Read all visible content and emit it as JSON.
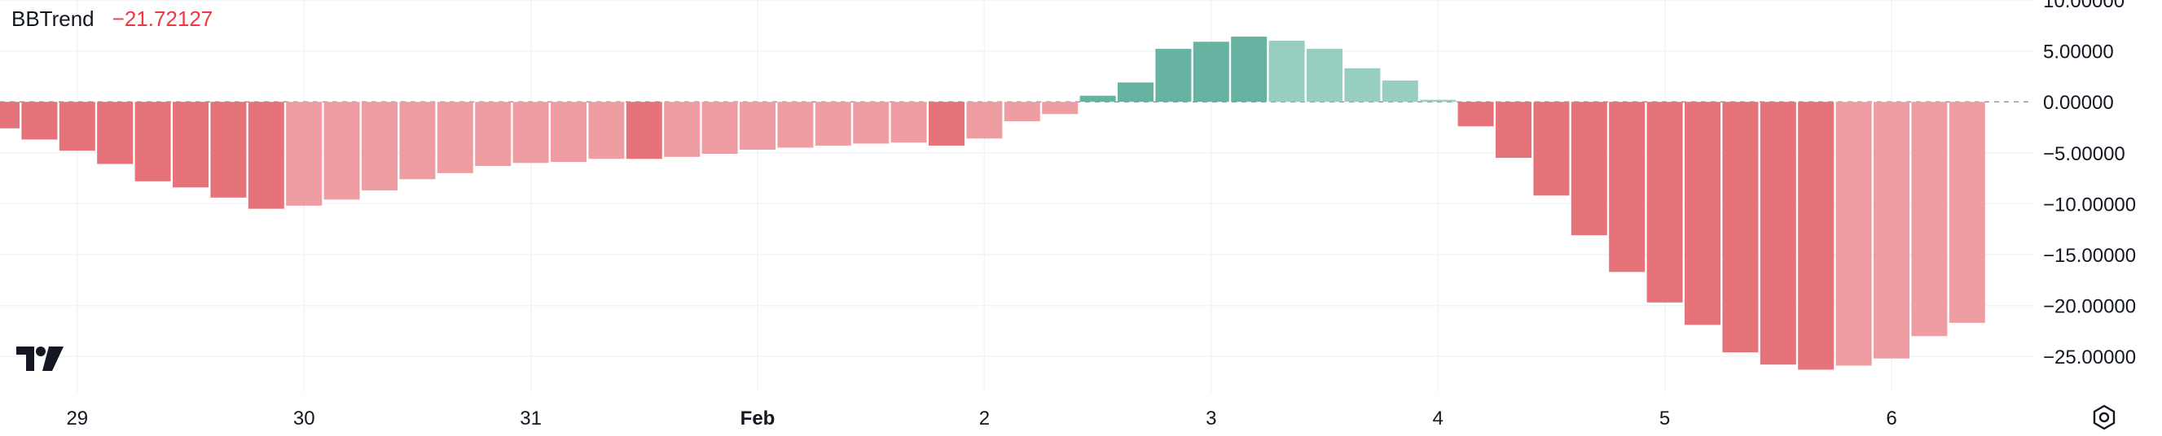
{
  "legend": {
    "name": "BBTrend",
    "value": "−21.72127"
  },
  "colors": {
    "neg_strong": "#e57379",
    "neg_weak": "#ee9ea3",
    "pos_strong": "#66b3a2",
    "pos_weak": "#98cdc2",
    "grid": "#f0f3fa",
    "zero_line": "#9598a1"
  },
  "icons": {
    "logo": "tradingview-logo-icon",
    "settings": "settings-gear-icon"
  },
  "chart_data": {
    "type": "bar",
    "ylim": [
      -28.5,
      10.0
    ],
    "y_ticks": [
      10,
      5,
      0,
      -5,
      -10,
      -15,
      -20,
      -25
    ],
    "y_tick_labels": [
      "10.00000",
      "5.00000",
      "0.00000",
      "−5.00000",
      "−10.00000",
      "−15.00000",
      "−20.00000",
      "−25.00000"
    ],
    "x_ticks": [
      {
        "label": "29",
        "index": 2,
        "bold": false
      },
      {
        "label": "30",
        "index": 8,
        "bold": false
      },
      {
        "label": "31",
        "index": 14,
        "bold": false
      },
      {
        "label": "Feb",
        "index": 20,
        "bold": true
      },
      {
        "label": "2",
        "index": 26,
        "bold": false
      },
      {
        "label": "3",
        "index": 32,
        "bold": false
      },
      {
        "label": "4",
        "index": 38,
        "bold": false
      },
      {
        "label": "5",
        "index": 44,
        "bold": false
      },
      {
        "label": "6",
        "index": 50,
        "bold": false
      }
    ],
    "values": [
      -2.6,
      -3.7,
      -4.8,
      -6.1,
      -7.8,
      -8.4,
      -9.4,
      -10.5,
      -10.2,
      -9.6,
      -8.7,
      -7.6,
      -7.0,
      -6.3,
      -6.0,
      -5.9,
      -5.6,
      -5.6,
      -5.4,
      -5.1,
      -4.7,
      -4.5,
      -4.3,
      -4.1,
      -4.0,
      -4.3,
      -3.6,
      -1.9,
      -1.2,
      0.6,
      1.9,
      5.2,
      5.9,
      6.4,
      6.0,
      5.2,
      3.3,
      2.1,
      0.2,
      -2.4,
      -5.5,
      -9.2,
      -13.1,
      -16.7,
      -19.7,
      -21.9,
      -24.6,
      -25.8,
      -26.3,
      -25.9,
      -25.2,
      -23.0,
      -21.7
    ],
    "series": [
      {
        "values_ref": "values"
      }
    ]
  }
}
